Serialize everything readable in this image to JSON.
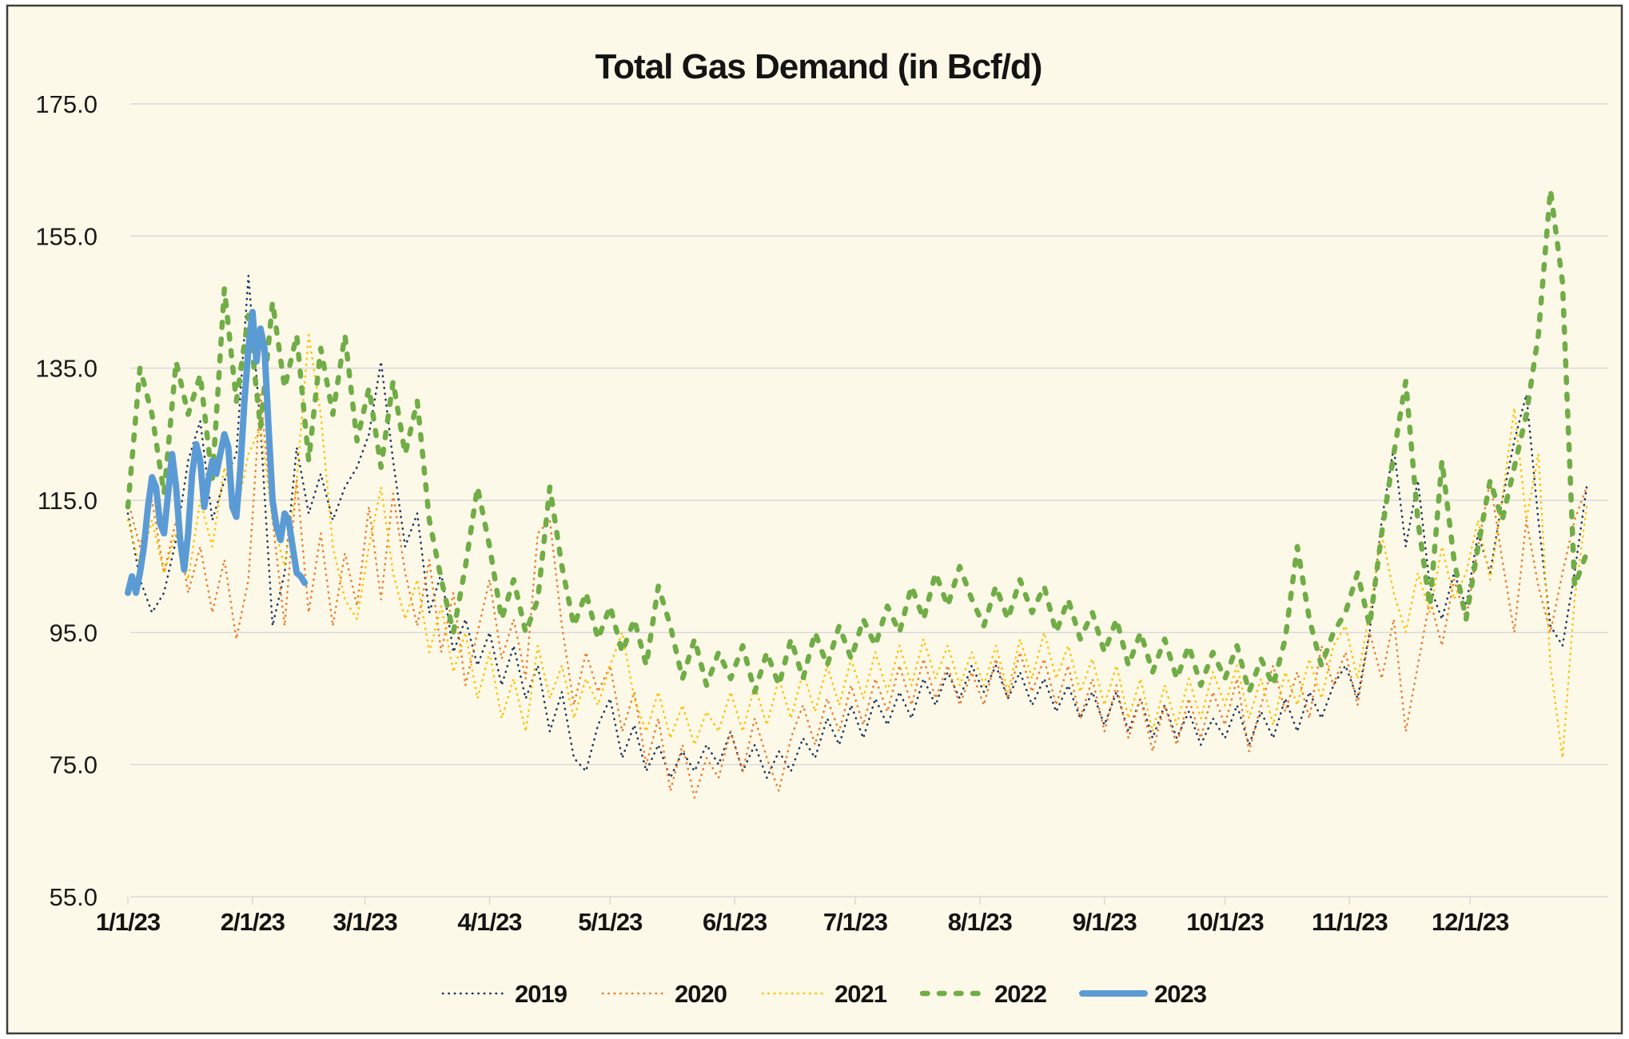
{
  "colors": {
    "background": "#FDF9E8",
    "frame_border": "#3F3F3F",
    "grid": "#D9D9D9",
    "text": "#141414",
    "series_2019": "#1F3864",
    "series_2020": "#ED7D31",
    "series_2021": "#FFC000",
    "series_2022": "#70AD47",
    "series_2023": "#5B9BD5"
  },
  "chart_data": {
    "type": "line",
    "title": "Total Gas Demand (in Bcf/d)",
    "xlabel": "",
    "ylabel": "",
    "unit": "Bcf/d",
    "grid": "horizontal-only",
    "legend_position": "bottom",
    "y_axis": {
      "min": 55,
      "max": 175,
      "tick_values": [
        175,
        155,
        135,
        115,
        95,
        75,
        55
      ],
      "tick_labels": [
        "175.0",
        "155.0",
        "135.0",
        "115.0",
        "95.0",
        "75.0",
        "55.0"
      ]
    },
    "x_axis": {
      "days_per_year": 365,
      "tick_days": [
        1,
        32,
        60,
        91,
        121,
        152,
        182,
        213,
        244,
        274,
        305,
        335
      ],
      "tick_labels": [
        "1/1/23",
        "2/1/23",
        "3/1/23",
        "4/1/23",
        "5/1/23",
        "6/1/23",
        "7/1/23",
        "8/1/23",
        "9/1/23",
        "10/1/23",
        "11/1/23",
        "12/1/23"
      ]
    },
    "series": [
      {
        "name": "2019",
        "color": "#1F3864",
        "style": "dotted",
        "start_day": 1,
        "day_step": 3,
        "values": [
          113,
          103,
          98,
          101,
          109,
          121,
          127,
          112,
          118,
          122,
          149,
          126,
          96,
          104,
          123,
          113,
          119,
          112,
          117,
          120,
          125,
          136,
          121,
          108,
          113,
          98,
          104,
          92,
          97,
          90,
          95,
          87,
          93,
          85,
          90,
          80,
          86,
          76,
          74,
          81,
          85,
          76,
          81,
          74,
          78,
          73,
          77,
          74,
          78,
          75,
          80,
          74,
          78,
          73,
          77,
          74,
          79,
          76,
          82,
          78,
          84,
          79,
          85,
          81,
          86,
          82,
          88,
          84,
          89,
          85,
          90,
          86,
          90,
          85,
          89,
          84,
          88,
          83,
          87,
          82,
          86,
          81,
          86,
          80,
          85,
          79,
          84,
          79,
          83,
          78,
          82,
          79,
          84,
          78,
          83,
          79,
          85,
          80,
          86,
          82,
          87,
          90,
          85,
          95,
          112,
          123,
          108,
          118,
          102,
          97,
          104,
          99,
          110,
          104,
          115,
          124,
          131,
          112,
          96,
          93,
          104,
          117
        ]
      },
      {
        "name": "2020",
        "color": "#ED7D31",
        "style": "dotted",
        "start_day": 1,
        "day_step": 3,
        "values": [
          115,
          108,
          115,
          104,
          112,
          101,
          108,
          98,
          106,
          94,
          103,
          131,
          112,
          96,
          118,
          98,
          110,
          96,
          107,
          99,
          114,
          100,
          116,
          104,
          96,
          106,
          92,
          101,
          87,
          95,
          103,
          91,
          97,
          88,
          110,
          112,
          96,
          84,
          92,
          86,
          90,
          80,
          86,
          75,
          82,
          71,
          78,
          70,
          76,
          73,
          80,
          74,
          82,
          76,
          71,
          79,
          84,
          78,
          85,
          80,
          87,
          81,
          88,
          83,
          90,
          84,
          91,
          85,
          90,
          84,
          89,
          84,
          91,
          85,
          92,
          86,
          91,
          84,
          90,
          82,
          88,
          80,
          87,
          79,
          85,
          77,
          84,
          78,
          85,
          79,
          86,
          81,
          88,
          77,
          84,
          90,
          83,
          89,
          82,
          93,
          87,
          92,
          84,
          95,
          88,
          97,
          80,
          90,
          100,
          93,
          103,
          97,
          108,
          118,
          106,
          95,
          112,
          102,
          95,
          104,
          112,
          117
        ]
      },
      {
        "name": "2021",
        "color": "#FFC000",
        "style": "dotted",
        "start_day": 1,
        "day_step": 3,
        "values": [
          112,
          105,
          112,
          104,
          110,
          103,
          115,
          108,
          120,
          113,
          122,
          126,
          112,
          105,
          118,
          140,
          128,
          108,
          100,
          97,
          108,
          117,
          104,
          97,
          103,
          92,
          99,
          89,
          95,
          85,
          92,
          82,
          88,
          80,
          93,
          85,
          90,
          82,
          88,
          84,
          90,
          95,
          85,
          80,
          86,
          79,
          84,
          78,
          83,
          80,
          86,
          80,
          87,
          81,
          88,
          82,
          89,
          83,
          90,
          84,
          91,
          85,
          92,
          86,
          93,
          87,
          94,
          88,
          93,
          87,
          92,
          87,
          93,
          86,
          94,
          88,
          95,
          88,
          93,
          86,
          91,
          84,
          90,
          82,
          88,
          80,
          87,
          81,
          88,
          82,
          89,
          84,
          90,
          82,
          88,
          81,
          89,
          84,
          91,
          85,
          93,
          96,
          88,
          98,
          110,
          101,
          95,
          104,
          98,
          108,
          100,
          104,
          112,
          103,
          115,
          129,
          112,
          122,
          90,
          76,
          100,
          114
        ]
      },
      {
        "name": "2022",
        "color": "#70AD47",
        "style": "dashed",
        "start_day": 1,
        "day_step": 3,
        "values": [
          114,
          135,
          128,
          116,
          136,
          128,
          134,
          118,
          147,
          130,
          143,
          126,
          145,
          132,
          140,
          121,
          138,
          128,
          140,
          124,
          132,
          120,
          133,
          122,
          130,
          112,
          103,
          95,
          105,
          117,
          108,
          97,
          103,
          95,
          100,
          117,
          105,
          96,
          101,
          94,
          99,
          92,
          97,
          90,
          102,
          96,
          88,
          94,
          87,
          92,
          88,
          93,
          86,
          92,
          87,
          94,
          88,
          95,
          90,
          96,
          91,
          97,
          93,
          99,
          95,
          102,
          97,
          104,
          99,
          105,
          100,
          96,
          102,
          97,
          103,
          98,
          102,
          95,
          100,
          94,
          98,
          92,
          97,
          90,
          95,
          89,
          94,
          88,
          93,
          87,
          92,
          88,
          93,
          86,
          91,
          87,
          94,
          108,
          97,
          90,
          95,
          98,
          104,
          96,
          110,
          122,
          133,
          112,
          99,
          121,
          106,
          97,
          108,
          118,
          112,
          120,
          128,
          140,
          162,
          148,
          102,
          107
        ]
      },
      {
        "name": "2023",
        "color": "#5B9BD5",
        "style": "solid",
        "start_day": 1,
        "day_step": 1,
        "values": [
          101,
          103.5,
          101,
          104,
          108,
          114,
          118.5,
          117,
          111.5,
          110,
          116,
          122,
          117,
          109,
          104.5,
          110,
          119,
          123.5,
          121,
          114,
          118,
          121,
          119,
          122,
          125,
          123,
          114,
          112.5,
          120,
          130,
          138,
          143.5,
          136,
          141,
          138,
          126,
          115,
          111,
          109,
          113,
          112,
          108,
          104,
          103.5,
          102.5
        ]
      }
    ],
    "legend_labels": [
      "2019",
      "2020",
      "2021",
      "2022",
      "2023"
    ]
  }
}
